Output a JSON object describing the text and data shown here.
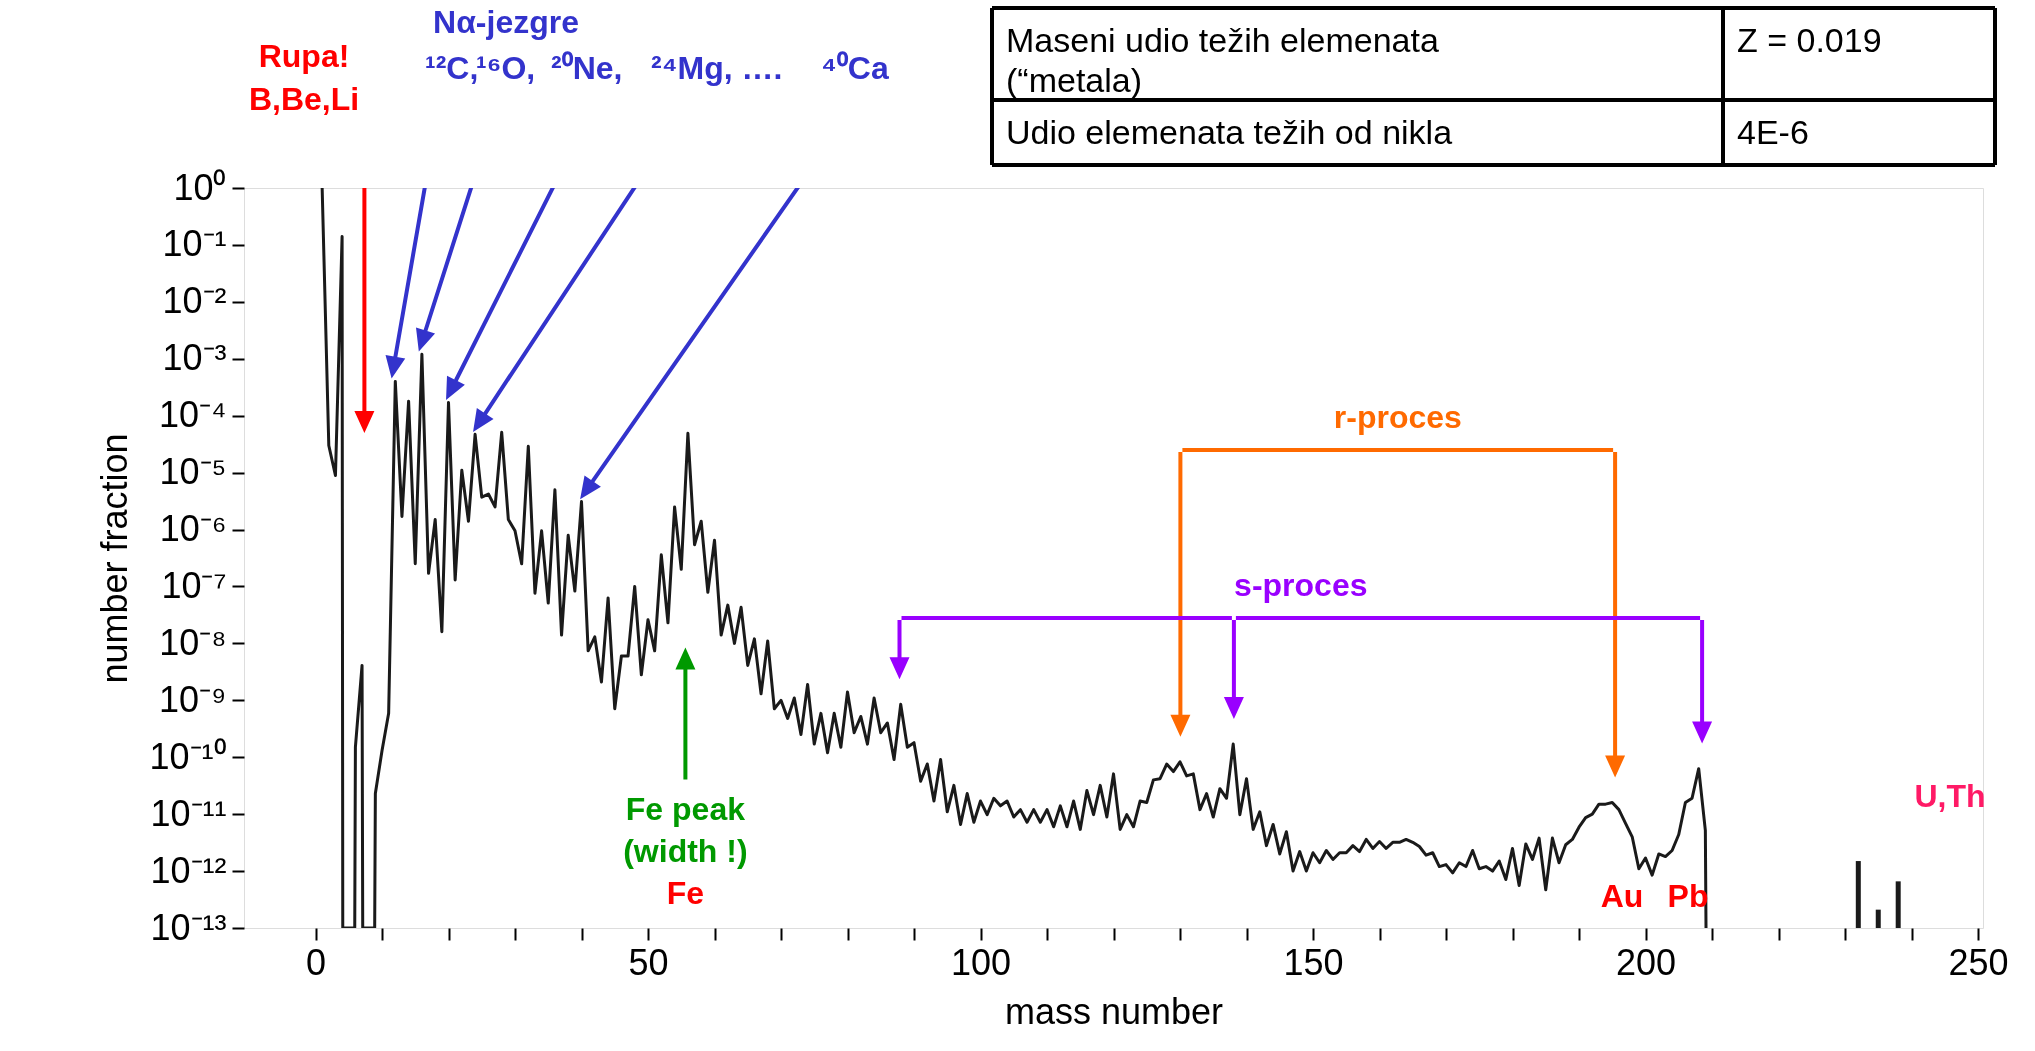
{
  "chart_data": {
    "type": "line",
    "xlabel": "mass number",
    "ylabel": "number fraction",
    "xlim": [
      -10,
      250
    ],
    "ylim": [
      1e-13,
      1
    ],
    "log": "y",
    "grid": false,
    "xticks": [
      0,
      {
        "value": 10,
        "label": null
      },
      {
        "value": 20,
        "label": null
      },
      {
        "value": 30,
        "label": null
      },
      {
        "value": 40,
        "label": null
      },
      50,
      {
        "value": 60,
        "label": null
      },
      {
        "value": 70,
        "label": null
      },
      {
        "value": 80,
        "label": null
      },
      {
        "value": 90,
        "label": null
      },
      100,
      {
        "value": 110,
        "label": null
      },
      {
        "value": 120,
        "label": null
      },
      {
        "value": 130,
        "label": null
      },
      {
        "value": 140,
        "label": null
      },
      150,
      {
        "value": 160,
        "label": null
      },
      {
        "value": 170,
        "label": null
      },
      {
        "value": 180,
        "label": null
      },
      {
        "value": 190,
        "label": null
      },
      200,
      {
        "value": 210,
        "label": null
      },
      {
        "value": 220,
        "label": null
      },
      {
        "value": 230,
        "label": null
      },
      {
        "value": 240,
        "label": null
      },
      250
    ],
    "yticks": [
      {
        "value": 1,
        "label": "10⁰"
      },
      {
        "value": 0.1,
        "label": "10⁻¹"
      },
      {
        "value": 0.01,
        "label": "10⁻²"
      },
      {
        "value": 0.001,
        "label": "10⁻³"
      },
      {
        "value": 0.0001,
        "label": "10⁻⁴"
      },
      {
        "value": 1e-05,
        "label": "10⁻⁵"
      },
      {
        "value": 1e-06,
        "label": "10⁻⁶"
      },
      {
        "value": 1e-07,
        "label": "10⁻⁷"
      },
      {
        "value": 1e-08,
        "label": "10⁻⁸"
      },
      {
        "value": 1e-09,
        "label": "10⁻⁹"
      },
      {
        "value": 1e-10,
        "label": "10⁻¹⁰"
      },
      {
        "value": 1e-11,
        "label": "10⁻¹¹"
      },
      {
        "value": 1e-12,
        "label": "10⁻¹²"
      },
      {
        "value": 1e-13,
        "label": "10⁻¹³"
      }
    ],
    "series": [
      {
        "color": "#1a1a1a",
        "x": [
          1,
          2,
          3,
          4,
          4.1,
          5.9,
          6,
          7,
          7.1,
          8.9,
          9,
          10,
          11,
          12,
          13,
          14,
          15,
          16,
          17,
          18,
          19,
          20,
          21,
          22,
          23,
          24,
          25,
          26,
          27,
          28,
          29,
          30,
          31,
          32,
          33,
          34,
          35,
          36,
          37,
          38,
          39,
          40,
          41,
          42,
          43,
          44,
          45,
          46,
          47,
          48,
          49,
          50,
          51,
          52,
          53,
          54,
          55,
          56,
          57,
          58,
          59,
          60,
          61,
          62,
          63,
          64,
          65,
          66,
          67,
          68,
          69,
          70,
          71,
          72,
          73,
          74,
          75,
          76,
          77,
          78,
          79,
          80,
          81,
          82,
          83,
          84,
          85,
          86,
          87,
          88,
          89,
          90,
          91,
          92,
          93,
          94,
          95,
          96,
          97,
          98,
          99,
          100,
          101,
          102,
          103,
          104,
          105,
          106,
          107,
          108,
          109,
          110,
          111,
          112,
          113,
          114,
          115,
          116,
          117,
          118,
          119,
          120,
          121,
          122,
          123,
          124,
          125,
          126,
          127,
          128,
          129,
          130,
          131,
          132,
          133,
          134,
          135,
          136,
          137,
          138,
          139,
          140,
          141,
          142,
          143,
          144,
          145,
          146,
          147,
          148,
          149,
          150,
          151,
          152,
          153,
          154,
          155,
          156,
          157,
          158,
          159,
          160,
          161,
          162,
          163,
          164,
          165,
          166,
          167,
          168,
          169,
          170,
          171,
          172,
          173,
          174,
          175,
          176,
          177,
          178,
          179,
          180,
          181,
          182,
          183,
          184,
          185,
          186,
          187,
          188,
          189,
          190,
          191,
          192,
          193,
          194,
          195,
          196,
          197,
          198,
          199,
          200,
          201,
          202,
          203,
          204,
          205,
          206,
          207,
          208,
          209,
          209.1
        ],
        "values": [
          1,
          3e-05,
          8.9e-06,
          0.14,
          1e-13,
          1e-13,
          1.5e-10,
          4.1e-09,
          1e-13,
          1e-13,
          2.3e-11,
          1.3e-10,
          5.9e-10,
          0.0004,
          1.7e-06,
          0.00018,
          2.5e-07,
          0.0012,
          1.7e-07,
          1.5e-06,
          1.6e-08,
          0.00017,
          1.3e-07,
          1.1e-05,
          1.4e-06,
          4.7e-05,
          3.7e-06,
          4.2e-06,
          2.5e-06,
          5.1e-05,
          1.5e-06,
          9.5e-07,
          2.5e-07,
          2.9e-05,
          7.6e-08,
          9.5e-07,
          5.1e-08,
          5e-06,
          1.4e-08,
          7.9e-07,
          8.3e-08,
          3.1e-06,
          7.4e-09,
          1.3e-08,
          2.1e-09,
          6.3e-08,
          7.1e-10,
          6e-09,
          6e-09,
          1e-07,
          2.8e-09,
          2.6e-08,
          7.4e-09,
          3.6e-07,
          2.3e-08,
          2.5e-06,
          2e-07,
          4.9e-05,
          5.4e-07,
          1.4e-06,
          7.9e-08,
          6.5e-07,
          1.4e-08,
          4.7e-08,
          1e-08,
          4.3e-08,
          4.1e-09,
          1.2e-08,
          1.3e-09,
          1.1e-08,
          7.1e-10,
          1e-09,
          4.8e-10,
          1.1e-09,
          2.5e-10,
          1.9e-09,
          1.7e-10,
          5.9e-10,
          1.2e-10,
          5.9e-10,
          1.5e-10,
          1.4e-09,
          2.7e-10,
          5.2e-10,
          1.7e-10,
          1.1e-09,
          2.7e-10,
          4e-10,
          9.1e-11,
          8.5e-10,
          1.5e-10,
          1.8e-10,
          3.8e-11,
          7.6e-11,
          1.7e-11,
          9.1e-11,
          1.1e-11,
          3.2e-11,
          6.6e-12,
          2.3e-11,
          7.2e-12,
          1.7e-11,
          9.8e-12,
          1.9e-11,
          1.4e-11,
          1.7e-11,
          8.9e-12,
          1.2e-11,
          7.2e-12,
          1.2e-11,
          7.2e-12,
          1.2e-11,
          6e-12,
          1.4e-11,
          6e-12,
          1.7e-11,
          5.4e-12,
          2.6e-11,
          9.8e-12,
          3.2e-11,
          8.9e-12,
          5.1e-11,
          5.4e-12,
          9.8e-12,
          6e-12,
          1.7e-11,
          1.6e-11,
          4e-11,
          4.2e-11,
          7.6e-11,
          5.6e-11,
          8.3e-11,
          4.7e-11,
          5.1e-11,
          1.2e-11,
          2.3e-11,
          8.9e-12,
          2.8e-11,
          1.9e-11,
          1.7e-10,
          9.8e-12,
          4.2e-11,
          5.4e-12,
          1.1e-11,
          2.8e-12,
          6.6e-12,
          2e-12,
          4.9e-12,
          1e-12,
          2.2e-12,
          1e-12,
          2.1e-12,
          1.4e-12,
          2.3e-12,
          1.6e-12,
          2.1e-12,
          2.1e-12,
          2.8e-12,
          2.2e-12,
          3.6e-12,
          2.5e-12,
          3.3e-12,
          2.5e-12,
          3.2e-12,
          3.2e-12,
          3.6e-12,
          3.2e-12,
          2.7e-12,
          1.9e-12,
          2.1e-12,
          1.2e-12,
          1.3e-12,
          9.3e-13,
          1.4e-12,
          1.2e-12,
          2.3e-12,
          1.1e-12,
          1.2e-12,
          1e-12,
          1.5e-12,
          7.1e-13,
          2.5e-12,
          5.6e-13,
          3e-12,
          1.6e-12,
          3.8e-12,
          4.7e-13,
          3.8e-12,
          1.4e-12,
          2.9e-12,
          3.6e-12,
          5.9e-12,
          8.7e-12,
          1e-11,
          1.5e-11,
          1.5e-11,
          1.6e-11,
          1.2e-11,
          6.9e-12,
          4e-12,
          1.1e-12,
          1.7e-12,
          8.5e-13,
          2e-12,
          1.8e-12,
          2.3e-12,
          4.4e-12,
          1.6e-11,
          1.9e-11,
          6.3e-11,
          5.2e-12,
          1e-13
        ]
      },
      {
        "type": "bar",
        "color": "#1a1a1a",
        "x": [
          232,
          235,
          238
        ],
        "values": [
          1.5e-12,
          2.1e-13,
          6.6e-13
        ]
      }
    ],
    "annotations": [
      "Rupa!",
      "B,Be,Li",
      "Nα-jezgre",
      "¹²C,",
      "¹⁶O,",
      "²⁰Ne,",
      "²⁴Mg, ….",
      "⁴⁰Ca",
      "r-proces",
      "s-proces",
      "Fe peak",
      "(width !)",
      "Fe",
      "Au",
      "Pb",
      "U,Th",
      "Maseni udio težih elemenata (“metala)",
      "Z = 0.019",
      "Udio elemenata težih od nikla",
      "4E-6"
    ]
  }
}
